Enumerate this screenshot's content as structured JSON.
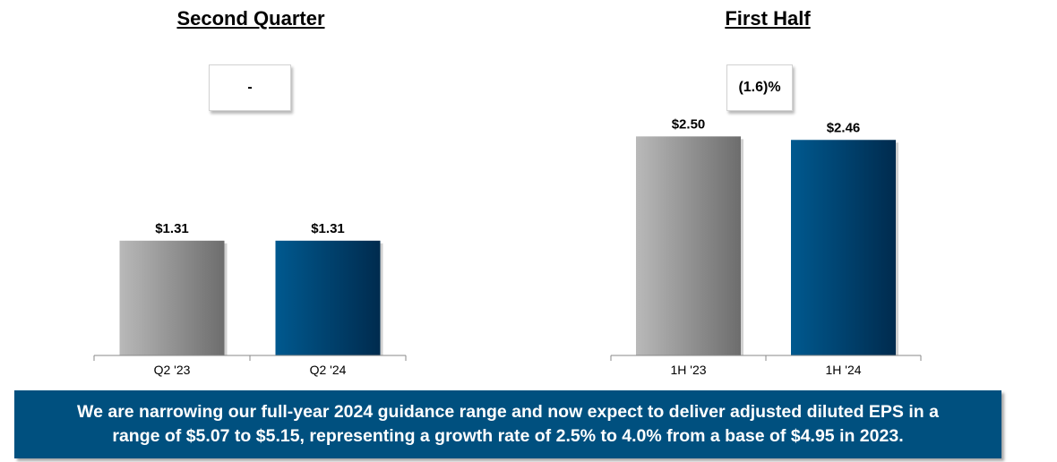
{
  "chart_data": [
    {
      "type": "bar",
      "title": "Second Quarter",
      "change_label": "-",
      "categories": [
        "Q2 '23",
        "Q2 '24"
      ],
      "values": [
        1.31,
        1.31
      ],
      "value_labels": [
        "$1.31",
        "$1.31"
      ],
      "colors": [
        "#8f8f8f",
        "#00406e"
      ],
      "ylim": [
        0,
        2.8
      ],
      "grid": false
    },
    {
      "type": "bar",
      "title": "First Half",
      "change_label": "(1.6)%",
      "categories": [
        "1H '23",
        "1H '24"
      ],
      "values": [
        2.5,
        2.46
      ],
      "value_labels": [
        "$2.50",
        "$2.46"
      ],
      "colors": [
        "#8f8f8f",
        "#00406e"
      ],
      "ylim": [
        0,
        2.8
      ],
      "grid": false
    }
  ],
  "banner": {
    "line1": "We are narrowing our full-year 2024 guidance range and now expect to deliver adjusted diluted EPS in a",
    "line2": "range of $5.07 to $5.15, representing a growth rate of 2.5% to 4.0% from a base of $4.95 in 2023."
  }
}
